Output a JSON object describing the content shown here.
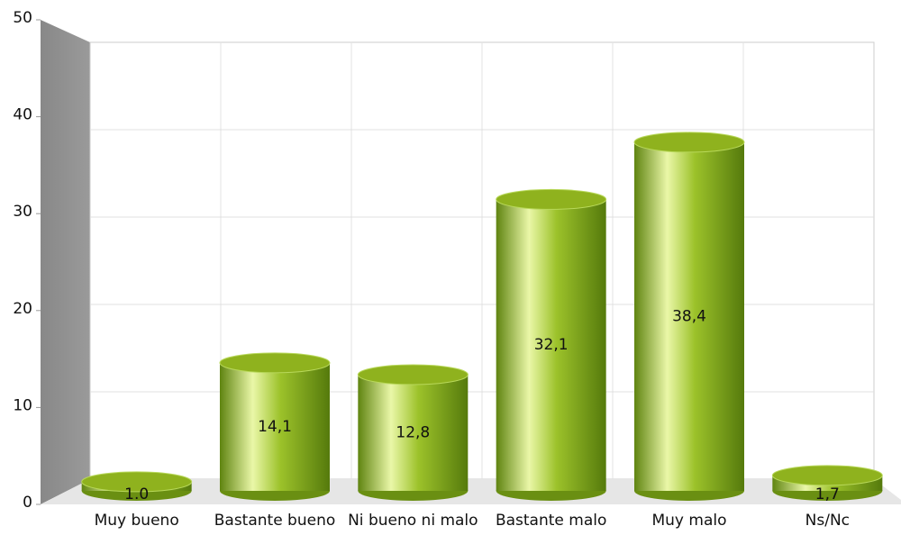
{
  "chart_data": {
    "type": "bar",
    "categories": [
      "Muy bueno",
      "Bastante bueno",
      "Ni bueno ni malo",
      "Bastante malo",
      "Muy malo",
      "Ns/Nc"
    ],
    "values": [
      1.0,
      14.1,
      12.8,
      32.1,
      38.4,
      1.7
    ],
    "value_labels": [
      "1.0",
      "14,1",
      "12,8",
      "32,1",
      "38,4",
      "1,7"
    ],
    "color": "#8fb21e",
    "ylim": [
      0,
      50
    ],
    "yticks": [
      0,
      10,
      20,
      30,
      40,
      50
    ],
    "grid": true
  }
}
